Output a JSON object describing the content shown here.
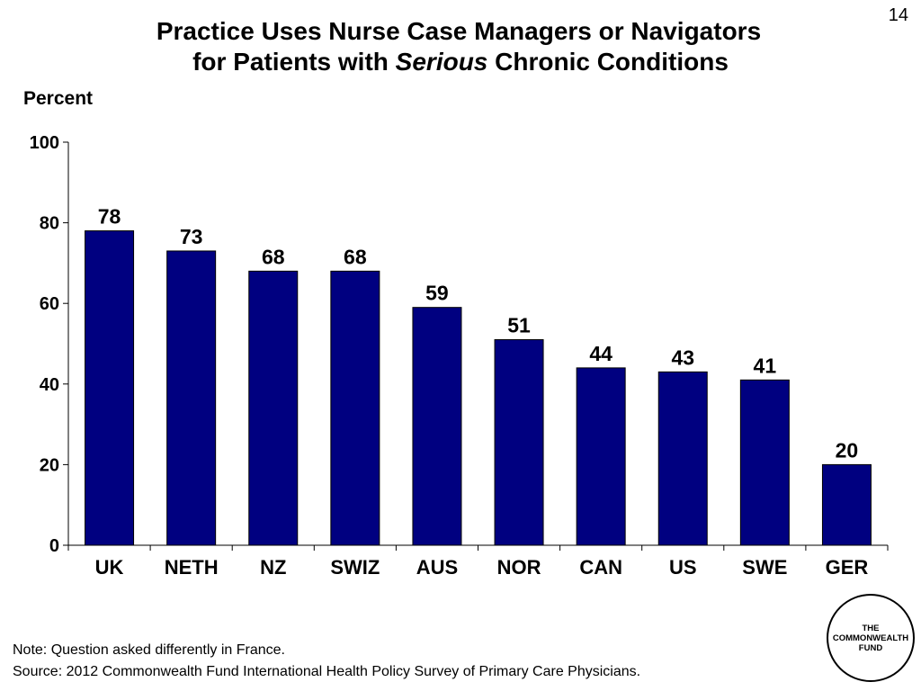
{
  "slide_number": "14",
  "title": {
    "line1": "Practice Uses Nurse Case Managers or Navigators",
    "line2_pre": "for Patients with ",
    "line2_italic": "Serious",
    "line2_post": " Chronic Conditions"
  },
  "note": "Note: Question asked differently in France.",
  "source": "Source: 2012 Commonwealth Fund International Health Policy Survey of Primary Care Physicians.",
  "logo": {
    "line1": "THE",
    "line2": "COMMONWEALTH",
    "line3": "FUND"
  },
  "colors": {
    "bar": "#000080",
    "axis": "#000000"
  },
  "chart_data": {
    "type": "bar",
    "title": "Practice Uses Nurse Case Managers or Navigators for Patients with Serious Chronic Conditions",
    "ylabel": "Percent",
    "xlabel": "",
    "categories": [
      "UK",
      "NETH",
      "NZ",
      "SWIZ",
      "AUS",
      "NOR",
      "CAN",
      "US",
      "SWE",
      "GER"
    ],
    "values": [
      78,
      73,
      68,
      68,
      59,
      51,
      44,
      43,
      41,
      20
    ],
    "ylim": [
      0,
      100
    ],
    "yticks": [
      0,
      20,
      40,
      60,
      80,
      100
    ],
    "data_labels": true,
    "grid": false,
    "legend": "none"
  }
}
